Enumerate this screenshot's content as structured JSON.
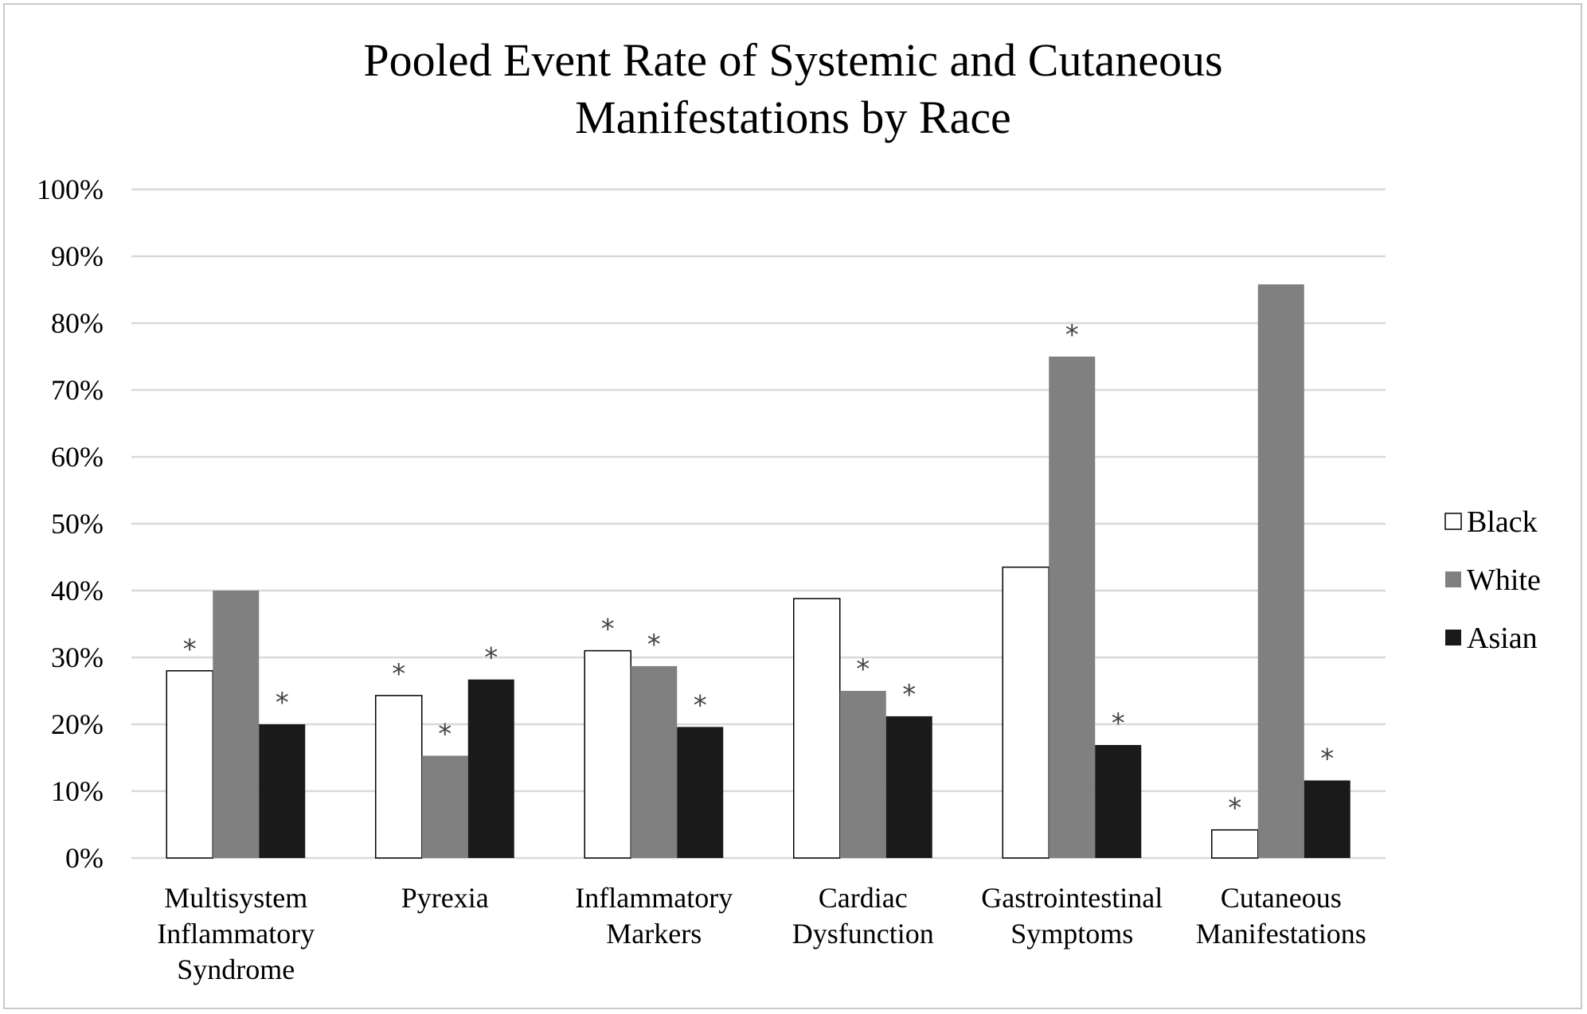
{
  "chart_data": {
    "type": "bar",
    "title_lines": [
      "Pooled Event Rate of Systemic and Cutaneous",
      "Manifestations by Race"
    ],
    "categories": [
      [
        "Multisystem",
        "Inflammatory",
        "Syndrome"
      ],
      [
        "Pyrexia"
      ],
      [
        "Inflammatory",
        "Markers"
      ],
      [
        "Cardiac",
        "Dysfunction"
      ],
      [
        "Gastrointestinal",
        "Symptoms"
      ],
      [
        "Cutaneous",
        "Manifestations"
      ]
    ],
    "series": [
      {
        "name": "Black",
        "color": "#ffffff",
        "values": [
          28,
          24.3,
          31,
          38.8,
          43.5,
          4.2
        ],
        "significant": [
          true,
          true,
          true,
          false,
          false,
          true
        ]
      },
      {
        "name": "White",
        "color": "#808080",
        "values": [
          40,
          15.3,
          28.7,
          25,
          75,
          85.8
        ],
        "significant": [
          false,
          true,
          true,
          true,
          true,
          false
        ]
      },
      {
        "name": "Asian",
        "color": "#1a1a1a",
        "values": [
          20,
          26.7,
          19.6,
          21.2,
          16.9,
          11.6
        ],
        "significant": [
          true,
          true,
          true,
          true,
          true,
          true
        ]
      }
    ],
    "significance_marker": "*",
    "ylim": [
      0,
      100
    ],
    "yticks": [
      0,
      10,
      20,
      30,
      40,
      50,
      60,
      70,
      80,
      90,
      100
    ],
    "ytick_labels": [
      "0%",
      "10%",
      "20%",
      "30%",
      "40%",
      "50%",
      "60%",
      "70%",
      "80%",
      "90%",
      "100%"
    ],
    "grid": true,
    "legend_position": "right"
  }
}
